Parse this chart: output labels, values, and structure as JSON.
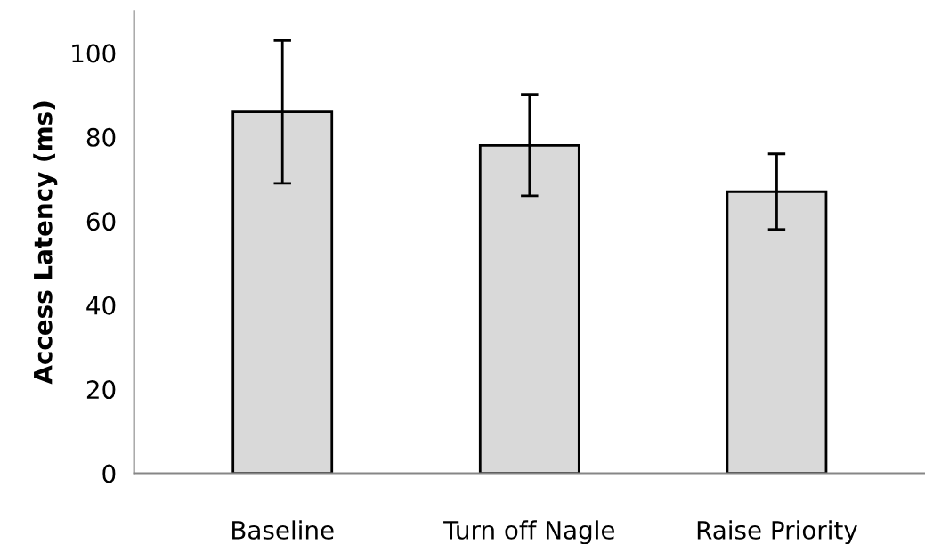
{
  "chart_data": {
    "type": "bar",
    "ylabel": "Access Latency (ms)",
    "categories": [
      "Baseline",
      "Turn off Nagle",
      "Raise Priority"
    ],
    "values": [
      86,
      78,
      67
    ],
    "errors": [
      17,
      12,
      9
    ],
    "color": "#d9d9d9",
    "ylim": [
      0,
      110
    ],
    "yticks": [
      0,
      20,
      40,
      60,
      80,
      100
    ],
    "grid": false
  }
}
